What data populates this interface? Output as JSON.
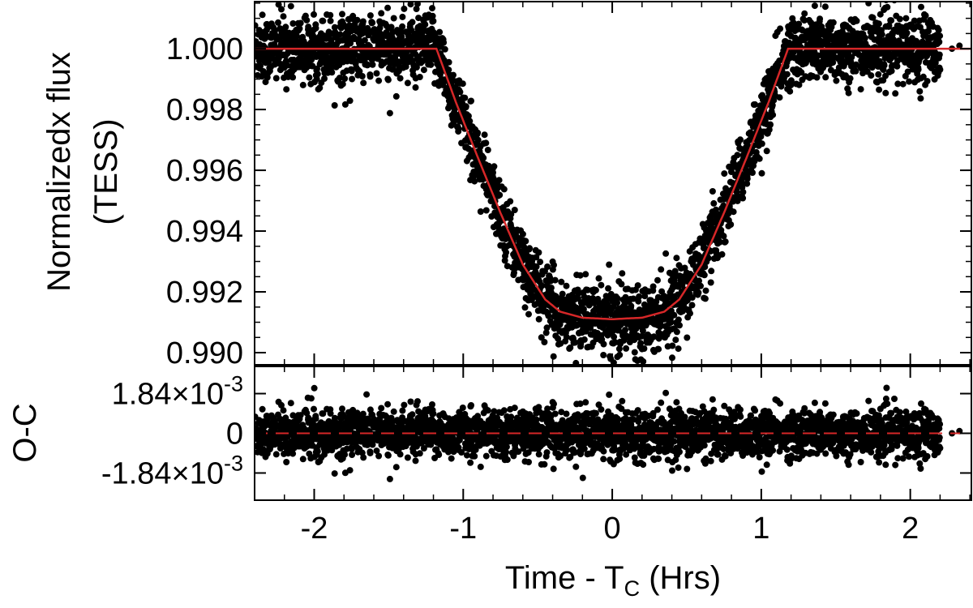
{
  "chart_data": [
    {
      "panel": "top",
      "type": "scatter",
      "ylabel_line1": "Normalizedx flux",
      "ylabel_line2": "(TESS)",
      "xlim": [
        -2.4,
        2.41
      ],
      "ylim": [
        0.9896,
        1.00155
      ],
      "y_ticks": [
        0.99,
        0.992,
        0.994,
        0.996,
        0.998,
        1.0
      ],
      "y_tick_labels": [
        "0.990",
        "0.992",
        "0.994",
        "0.996",
        "0.998",
        "1.000"
      ],
      "series": [
        {
          "kind": "points",
          "color": "#000000",
          "description_values": {
            "out_of_transit_flux": 1.0,
            "in_transit_min_flux": 0.9911,
            "scatter_sigma": 0.00055,
            "time_range": [
              -2.4,
              2.2
            ]
          }
        },
        {
          "kind": "model-line",
          "color": "#d62728",
          "x": [
            -2.4,
            -1.18,
            -1.05,
            -0.9,
            -0.75,
            -0.6,
            -0.45,
            -0.35,
            -0.2,
            0.0,
            0.2,
            0.35,
            0.45,
            0.6,
            0.75,
            0.9,
            1.05,
            1.18,
            2.41
          ],
          "y": [
            1.0,
            1.0,
            0.99825,
            0.9964,
            0.9946,
            0.9929,
            0.99175,
            0.99135,
            0.99115,
            0.9911,
            0.99115,
            0.99135,
            0.99175,
            0.9929,
            0.9946,
            0.9964,
            0.99825,
            1.0,
            1.0
          ]
        }
      ]
    },
    {
      "panel": "bottom",
      "type": "scatter",
      "ylabel": "O-C",
      "xlabel": "Time - T",
      "xlabel_subscript": "C",
      "xlabel_suffix": " (Hrs)",
      "xlim": [
        -2.4,
        2.41
      ],
      "ylim": [
        -0.0031,
        0.0031
      ],
      "x_ticks": [
        -2,
        -1,
        0,
        1,
        2
      ],
      "x_tick_labels": [
        "-2",
        "-1",
        "0",
        "1",
        "2"
      ],
      "y_ticks": [
        -0.00184,
        0,
        0.00184
      ],
      "y_tick_labels": [
        {
          "mantissa": "-1.84×10",
          "exponent": "-3"
        },
        {
          "mantissa": "0",
          "exponent": ""
        },
        {
          "mantissa": "1.84×10",
          "exponent": "-3"
        }
      ],
      "series": [
        {
          "kind": "points",
          "color": "#000000",
          "description_values": {
            "residual_sigma": 0.00055
          }
        },
        {
          "kind": "zero-line",
          "color": "#d62728",
          "style": "dashed",
          "y": 0
        }
      ]
    }
  ]
}
